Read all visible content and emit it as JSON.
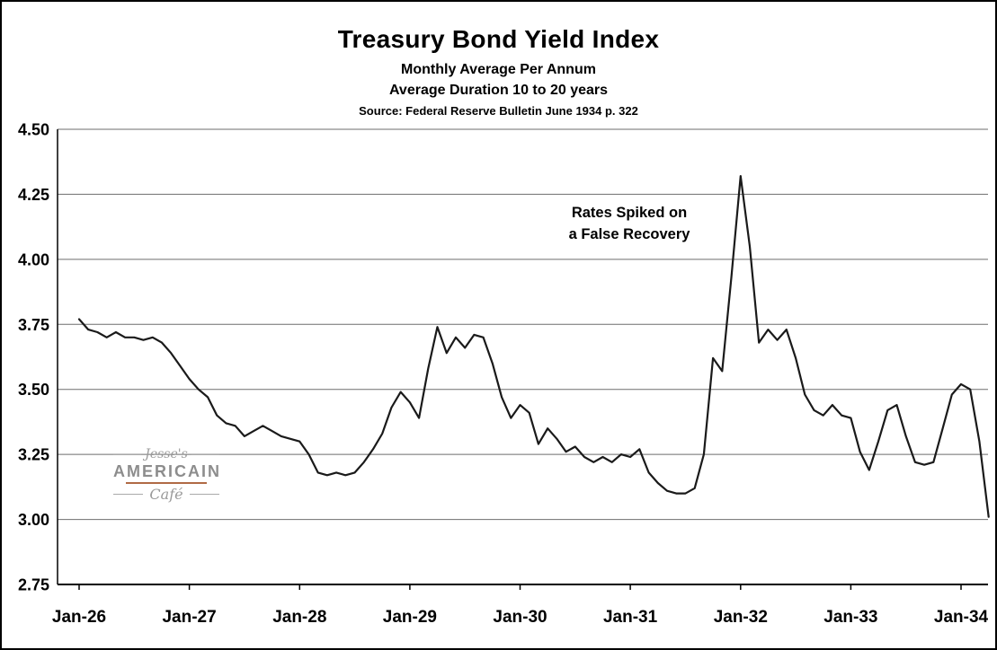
{
  "chart_data": {
    "type": "line",
    "title": "Treasury Bond Yield Index",
    "subtitle1": "Monthly Average Per Annum",
    "subtitle2": "Average Duration 10 to 20 years",
    "source": "Source: Federal Reserve Bulletin June 1934 p. 322",
    "xlabel": "",
    "ylabel": "",
    "legend": "none",
    "grid": "horizontal",
    "ylim": [
      2.75,
      4.5
    ],
    "y_step": 0.25,
    "y_tick_labels": [
      "4.50",
      "4.25",
      "4.00",
      "3.75",
      "3.50",
      "3.25",
      "3.00",
      "2.75"
    ],
    "x_tick_labels": [
      "Jan-26",
      "Jan-27",
      "Jan-28",
      "Jan-29",
      "Jan-30",
      "Jan-31",
      "Jan-32",
      "Jan-33",
      "Jan-34"
    ],
    "x_tick_months": [
      0,
      12,
      24,
      36,
      48,
      60,
      72,
      84,
      96
    ],
    "x_range": [
      "Jan-1926",
      "Apr-1934"
    ],
    "frequency": "monthly",
    "annotation": {
      "line1": "Rates Spiked on",
      "line2": "a False Recovery",
      "near_x": "Dec-1930",
      "near_y_value": 4.15
    },
    "colors": {
      "line": "#1a1a1a",
      "grid": "#6e6e6e",
      "axis": "#000000",
      "text": "#000000"
    },
    "series": [
      {
        "name": "Treasury Bond Yield Index (monthly average, % per annum)",
        "color": "#1a1a1a",
        "values": [
          3.77,
          3.73,
          3.72,
          3.7,
          3.72,
          3.7,
          3.7,
          3.69,
          3.7,
          3.68,
          3.64,
          3.59,
          3.54,
          3.5,
          3.47,
          3.4,
          3.37,
          3.36,
          3.32,
          3.34,
          3.36,
          3.34,
          3.32,
          3.31,
          3.3,
          3.25,
          3.18,
          3.17,
          3.18,
          3.17,
          3.18,
          3.22,
          3.27,
          3.33,
          3.43,
          3.49,
          3.45,
          3.39,
          3.58,
          3.74,
          3.64,
          3.7,
          3.66,
          3.71,
          3.7,
          3.6,
          3.47,
          3.39,
          3.44,
          3.41,
          3.29,
          3.35,
          3.31,
          3.26,
          3.28,
          3.24,
          3.22,
          3.24,
          3.22,
          3.25,
          3.24,
          3.27,
          3.18,
          3.14,
          3.11,
          3.1,
          3.1,
          3.12,
          3.25,
          3.62,
          3.57,
          3.93,
          4.32,
          4.05,
          3.68,
          3.73,
          3.69,
          3.73,
          3.62,
          3.48,
          3.42,
          3.4,
          3.44,
          3.4,
          3.39,
          3.26,
          3.19,
          3.3,
          3.42,
          3.44,
          3.32,
          3.22,
          3.21,
          3.22,
          3.35,
          3.48,
          3.52,
          3.5,
          3.3,
          3.01
        ]
      }
    ]
  },
  "watermark": {
    "line1": "Jesse's",
    "line2": "AMERICAIN",
    "line3": "Café",
    "color": "#9a9a9a",
    "accent": "#b06a45"
  }
}
